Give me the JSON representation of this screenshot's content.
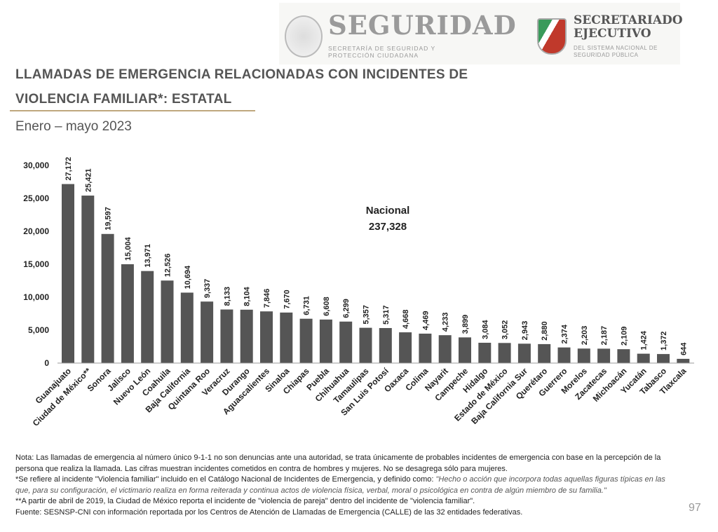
{
  "header": {
    "logo1_title": "SEGURIDAD",
    "logo1_sub": "SECRETARÍA DE SEGURIDAD Y PROTECCIÓN CIUDADANA",
    "logo2_title": "SECRETARIADO EJECUTIVO",
    "logo2_sub": "DEL SISTEMA NACIONAL DE SEGURIDAD PÚBLICA"
  },
  "title_line1": "LLAMADAS DE EMERGENCIA RELACIONADAS CON INCIDENTES DE",
  "title_line2": "VIOLENCIA FAMILIAR*: ESTATAL",
  "subtitle": "Enero – mayo 2023",
  "colors": {
    "bar": "#555555",
    "accent": "#bfa77e"
  },
  "chart_data": {
    "type": "bar",
    "ylim": [
      0,
      30000
    ],
    "yticks": [
      "0",
      "5,000",
      "10,000",
      "15,000",
      "20,000",
      "25,000",
      "30,000"
    ],
    "annotation": {
      "label": "Nacional",
      "value": "237,328"
    },
    "categories": [
      "Guanajuato",
      "Ciudad de México**",
      "Sonora",
      "Jalisco",
      "Nuevo León",
      "Coahuila",
      "Baja California",
      "Quintana Roo",
      "Veracruz",
      "Durango",
      "Aguascalientes",
      "Sinaloa",
      "Chiapas",
      "Puebla",
      "Chihuahua",
      "Tamaulipas",
      "San Luis Potosí",
      "Oaxaca",
      "Colima",
      "Nayarit",
      "Campeche",
      "Hidalgo",
      "Estado de México",
      "Baja California Sur",
      "Querétaro",
      "Guerrero",
      "Morelos",
      "Zacatecas",
      "Michoacán",
      "Yucatán",
      "Tabasco",
      "Tlaxcala"
    ],
    "values": [
      27172,
      25421,
      19597,
      15004,
      13971,
      12526,
      10694,
      9337,
      8133,
      8104,
      7846,
      7670,
      6731,
      6608,
      6299,
      5357,
      5317,
      4668,
      4469,
      4233,
      3899,
      3084,
      3052,
      2943,
      2880,
      2374,
      2203,
      2187,
      2109,
      1424,
      1372,
      644
    ],
    "labels": [
      "27,172",
      "25,421",
      "19,597",
      "15,004",
      "13,971",
      "12,526",
      "10,694",
      "9,337",
      "8,133",
      "8,104",
      "7,846",
      "7,670",
      "6,731",
      "6,608",
      "6,299",
      "5,357",
      "5,317",
      "4,668",
      "4,469",
      "4,233",
      "3,899",
      "3,084",
      "3,052",
      "2,943",
      "2,880",
      "2,374",
      "2,203",
      "2,187",
      "2,109",
      "1,424",
      "1,372",
      "644"
    ]
  },
  "notes": {
    "nota": "Nota: Las llamadas de emergencia al número único 9-1-1 no son denuncias ante una autoridad, se trata únicamente de probables incidentes de emergencia con base en la percepción de la persona que realiza la llamada. Las cifras muestran incidentes cometidos en contra de hombres y mujeres. No se desagrega sólo para mujeres.",
    "def_lead": "*Se refiere al incidente \"Violencia familiar\" incluido en el Catálogo Nacional de Incidentes de Emergencia, y definido como: ",
    "def_italic": "\"Hecho o acción  que incorpora todas aquellas figuras típicas en las que, para su configuración, el victimario realiza en forma reiterada y continua actos de violencia física, verbal, moral o psicológica en contra de algún miembro de su familia.\"",
    "cdmx": "**A partir de abril de 2019, la Ciudad de México reporta el incidente de \"violencia de pareja\" dentro del incidente de \"violencia familiar\".",
    "fuente": "Fuente: SESNSP-CNI con información reportada por los Centros de Atención de Llamadas de Emergencia (CALLE) de las 32 entidades federativas."
  },
  "page_number": "97"
}
